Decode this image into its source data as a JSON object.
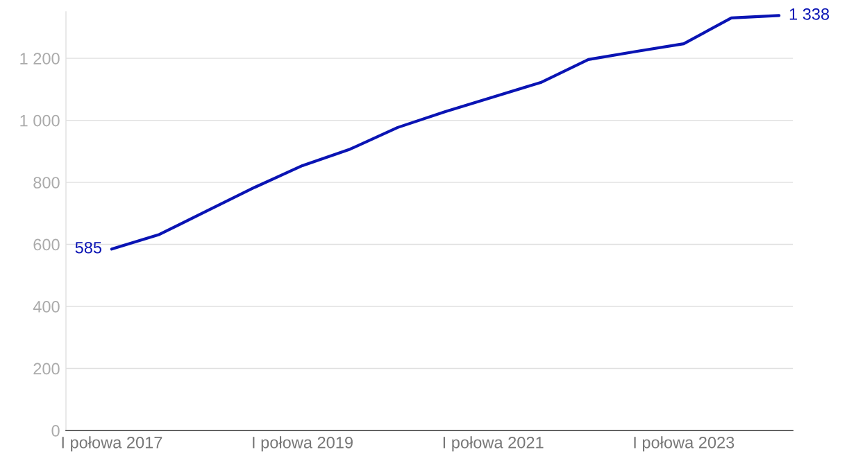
{
  "chart_data": {
    "type": "line",
    "categories": [
      "I połowa 2017",
      null,
      null,
      null,
      "I połowa 2019",
      null,
      null,
      null,
      "I połowa 2021",
      null,
      null,
      null,
      "I połowa 2023",
      null,
      null
    ],
    "series": [
      {
        "color": "#0a14b4",
        "values": [
          585,
          632,
          708,
          784,
          854,
          907,
          977,
          1028,
          1075,
          1122,
          1196,
          1222,
          1247,
          1330,
          1338
        ],
        "value_labels": [
          "585",
          null,
          null,
          null,
          null,
          null,
          null,
          null,
          null,
          null,
          null,
          null,
          null,
          null,
          "1 338"
        ]
      }
    ],
    "ylim": [
      0,
      1350
    ],
    "yticks": [
      0,
      200,
      400,
      600,
      800,
      {
        "value": 1000,
        "label": "1 000"
      },
      {
        "value": 1200,
        "label": "1 200"
      }
    ],
    "grid": "y",
    "legend": false,
    "marker": "none",
    "line_style": "solid"
  }
}
